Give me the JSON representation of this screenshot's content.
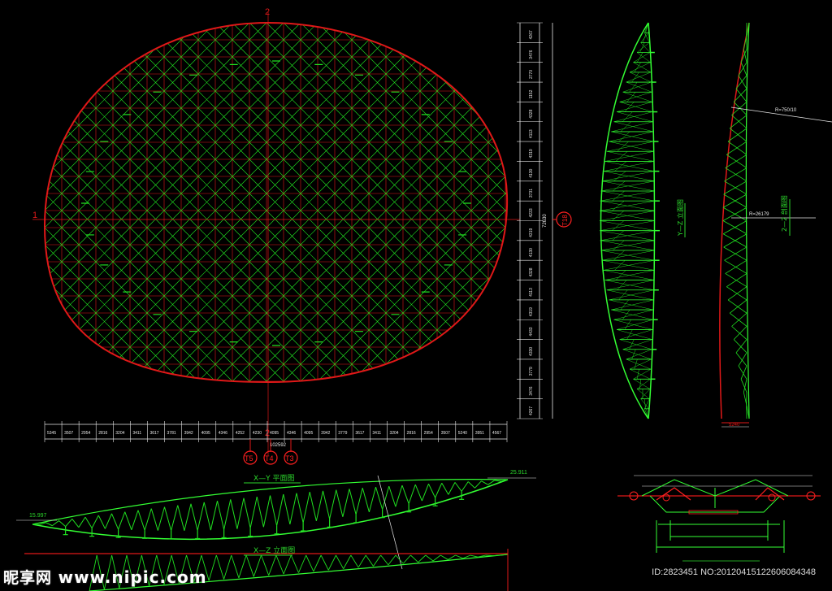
{
  "labels": {
    "axis_top": "2",
    "axis_left": "1",
    "axis_bottom": "2",
    "circle_right": "T18",
    "circles_bottom": [
      "T5",
      "T4",
      "T3"
    ],
    "plan_title": "X—Y 平面图",
    "xz_title": "X—Z 立面图",
    "yz_title": "Y—Z 立面图",
    "section_title": "2—2 剖面图",
    "radius_a": "R=750/10",
    "radius_b": "R=26179",
    "elev_right": "25.911",
    "elev_left": "15.997",
    "total_bottom": "102592",
    "total_right": "72630",
    "span_bottom": "5240",
    "dims_bottom": [
      "5345",
      "3507",
      "2954",
      "2816",
      "3204",
      "3411",
      "3617",
      "3781",
      "3942",
      "4095",
      "4346",
      "4252",
      "4230",
      "4095",
      "4346",
      "4095",
      "3942",
      "3779",
      "3617",
      "3411",
      "3204",
      "2816",
      "2954",
      "3507",
      "5240",
      "3951",
      "4567"
    ],
    "dims_right": [
      "4267",
      "3476",
      "2770",
      "1152",
      "4328",
      "4113",
      "4319",
      "4130",
      "3731",
      "4233",
      "4319",
      "4130",
      "4328",
      "4113",
      "4319",
      "4433",
      "4330",
      "3779",
      "3476",
      "4267"
    ]
  },
  "colors": {
    "member_green": "#20e020",
    "bright_green": "#33ff33",
    "chord_red": "#e01818",
    "dim_white": "#e8e8e8",
    "label_green": "#2bd62b",
    "marker_red": "#ff2020"
  },
  "watermark": {
    "brand": "昵享网",
    "site": "www.nipic.com",
    "id_line": "ID:2823451 NO:20120415122606084348"
  }
}
